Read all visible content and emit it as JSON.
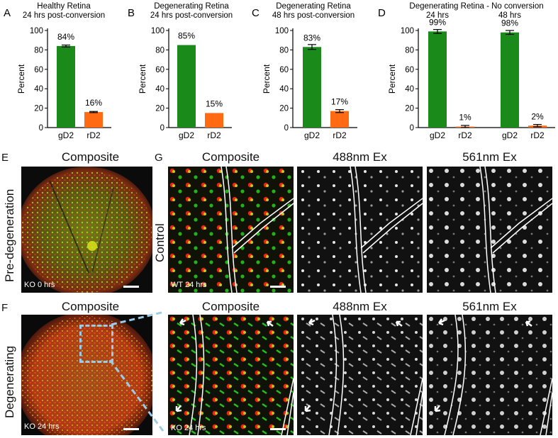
{
  "panel_letters": [
    "A",
    "B",
    "C",
    "D",
    "E",
    "F",
    "G"
  ],
  "charts_meta": {
    "ylabel": "Percent",
    "ylim": [
      0,
      100
    ],
    "yticks": [
      0,
      20,
      40,
      60,
      80,
      100
    ],
    "colors": {
      "gD2": "#1a8a1a",
      "rD2": "#ff6a13"
    }
  },
  "chart_data": [
    {
      "type": "bar",
      "title": "Healthy Retina",
      "subtitle": "24 hrs post-conversion",
      "ylabel": "Percent",
      "ylim": [
        0,
        100
      ],
      "categories": [
        "gD2",
        "rD2"
      ],
      "values": [
        84,
        16
      ],
      "value_labels": [
        "84%",
        "16%"
      ],
      "error_bars": true
    },
    {
      "type": "bar",
      "title": "Degenerating Retina",
      "subtitle": "24 hrs post-conversion",
      "ylabel": "Percent",
      "ylim": [
        0,
        100
      ],
      "categories": [
        "gD2",
        "rD2"
      ],
      "values": [
        85,
        15
      ],
      "value_labels": [
        "85%",
        "15%"
      ],
      "error_bars": false
    },
    {
      "type": "bar",
      "title": "Degenerating Retina",
      "subtitle": "48 hrs post-conversion",
      "ylabel": "Percent",
      "ylim": [
        0,
        100
      ],
      "categories": [
        "gD2",
        "rD2"
      ],
      "values": [
        83,
        17
      ],
      "value_labels": [
        "83%",
        "17%"
      ],
      "error_bars": true
    },
    {
      "type": "bar",
      "title": "Degenerating Retina - No conversion",
      "subtitle": "",
      "group_labels": [
        "24 hrs",
        "48 hrs"
      ],
      "ylabel": "Percent",
      "ylim": [
        0,
        100
      ],
      "categories": [
        "gD2",
        "rD2",
        "gD2",
        "rD2"
      ],
      "values": [
        99,
        1,
        98,
        2
      ],
      "value_labels": [
        "99%",
        "1%",
        "98%",
        "2%"
      ],
      "error_bars": true
    }
  ],
  "micrographs": {
    "E": {
      "title": "Composite",
      "row_label": "Pre-degeneration",
      "caption": "KO 0 hrs"
    },
    "F": {
      "title": "Composite",
      "row_label": "Degenerating",
      "caption": "KO 24 hrs"
    },
    "G": {
      "row_labels": [
        "Control"
      ],
      "columns": [
        "Composite",
        "488nm Ex",
        "561nm Ex"
      ],
      "top_row_title_repeat": [
        "Composite",
        "488nm Ex",
        "561nm Ex"
      ],
      "captions": [
        "WT 24 hrs",
        "KO 24 hrs"
      ]
    }
  }
}
